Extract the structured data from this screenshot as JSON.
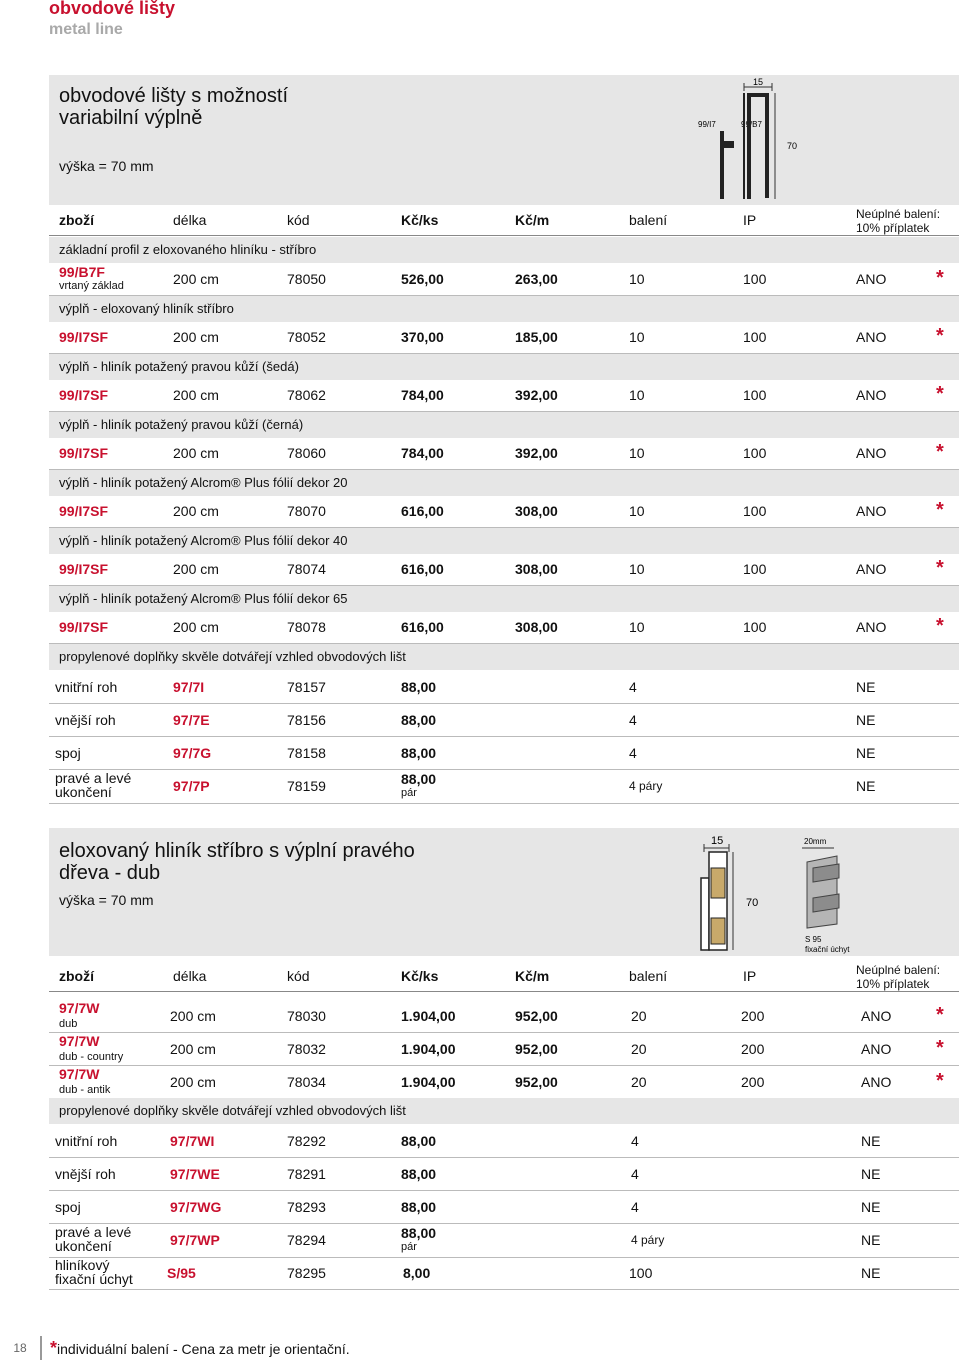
{
  "header": {
    "title": "obvodové lišty",
    "subtitle": "metal line"
  },
  "section1": {
    "title_line1": "obvodové lišty s možností",
    "title_line2": "variabilní výplně",
    "height": "výška = 70 mm",
    "diagram": {
      "dim_top": "15",
      "label_a": "99/I7",
      "label_b": "99/B7",
      "dim_side": "70"
    },
    "columns": {
      "goods": "zboží",
      "length": "délka",
      "code": "kód",
      "price_pc": "Kč/ks",
      "price_m": "Kč/m",
      "pack": "balení",
      "ip": "IP",
      "partial_1": "Neúplné balení:",
      "partial_2": "10% příplatek"
    },
    "bands": [
      "základní profil z eloxovaného hliníku - stříbro",
      "výplň - eloxovaný hliník stříbro",
      "výplň - hliník potažený pravou kůží (šedá)",
      "výplň - hliník potažený pravou kůží (černá)",
      "výplň - hliník potažený Alcrom® Plus fólií dekor 20",
      "výplň - hliník potažený Alcrom® Plus fólií dekor 40",
      "výplň - hliník potažený Alcrom® Plus fólií dekor 65",
      "propylenové doplňky skvěle dotvářejí vzhled obvodových lišt"
    ],
    "rows": [
      {
        "goods": "99/B7F",
        "note": "vrtaný základ",
        "length": "200 cm",
        "code": "78050",
        "price_pc": "526,00",
        "price_m": "263,00",
        "pack": "10",
        "ip": "100",
        "partial": "ANO",
        "star": "*"
      },
      {
        "goods": "99/I7SF",
        "length": "200 cm",
        "code": "78052",
        "price_pc": "370,00",
        "price_m": "185,00",
        "pack": "10",
        "ip": "100",
        "partial": "ANO",
        "star": "*"
      },
      {
        "goods": "99/I7SF",
        "length": "200 cm",
        "code": "78062",
        "price_pc": "784,00",
        "price_m": "392,00",
        "pack": "10",
        "ip": "100",
        "partial": "ANO",
        "star": "*"
      },
      {
        "goods": "99/I7SF",
        "length": "200 cm",
        "code": "78060",
        "price_pc": "784,00",
        "price_m": "392,00",
        "pack": "10",
        "ip": "100",
        "partial": "ANO",
        "star": "*"
      },
      {
        "goods": "99/I7SF",
        "length": "200 cm",
        "code": "78070",
        "price_pc": "616,00",
        "price_m": "308,00",
        "pack": "10",
        "ip": "100",
        "partial": "ANO",
        "star": "*"
      },
      {
        "goods": "99/I7SF",
        "length": "200 cm",
        "code": "78074",
        "price_pc": "616,00",
        "price_m": "308,00",
        "pack": "10",
        "ip": "100",
        "partial": "ANO",
        "star": "*"
      },
      {
        "goods": "99/I7SF",
        "length": "200 cm",
        "code": "78078",
        "price_pc": "616,00",
        "price_m": "308,00",
        "pack": "10",
        "ip": "100",
        "partial": "ANO",
        "star": "*"
      }
    ],
    "accessories": [
      {
        "name": "vnitřní roh",
        "sku": "97/7I",
        "code": "78157",
        "price": "88,00",
        "pack": "4",
        "partial": "NE"
      },
      {
        "name": "vnější roh",
        "sku": "97/7E",
        "code": "78156",
        "price": "88,00",
        "pack": "4",
        "partial": "NE"
      },
      {
        "name": "spoj",
        "sku": "97/7G",
        "code": "78158",
        "price": "88,00",
        "pack": "4",
        "partial": "NE"
      },
      {
        "name_1": "pravé a levé",
        "name_2": "ukončení",
        "sku": "97/7P",
        "code": "78159",
        "price": "88,00",
        "price_unit": "pár",
        "pack": "4 páry",
        "partial": "NE"
      }
    ]
  },
  "section2": {
    "title_line1": "eloxovaný hliník stříbro s výplní pravého",
    "title_line2": "dřeva - dub",
    "height": "výška = 70 mm",
    "diagram": {
      "dim_top": "15",
      "dim_side": "70",
      "dim_clip": "20mm",
      "clip_1": "S 95",
      "clip_2": "fixační úchyt"
    },
    "rows": [
      {
        "goods": "97/7W",
        "note": "dub",
        "length": "200 cm",
        "code": "78030",
        "price_pc": "1.904,00",
        "price_m": "952,00",
        "pack": "20",
        "ip": "200",
        "partial": "ANO",
        "star": "*"
      },
      {
        "goods": "97/7W",
        "note": "dub - country",
        "length": "200 cm",
        "code": "78032",
        "price_pc": "1.904,00",
        "price_m": "952,00",
        "pack": "20",
        "ip": "200",
        "partial": "ANO",
        "star": "*"
      },
      {
        "goods": "97/7W",
        "note": "dub - antik",
        "length": "200 cm",
        "code": "78034",
        "price_pc": "1.904,00",
        "price_m": "952,00",
        "pack": "20",
        "ip": "200",
        "partial": "ANO",
        "star": "*"
      }
    ],
    "band": "propylenové doplňky skvěle dotvářejí vzhled obvodových lišt",
    "accessories": [
      {
        "name": "vnitřní roh",
        "sku": "97/7WI",
        "code": "78292",
        "price": "88,00",
        "pack": "4",
        "partial": "NE"
      },
      {
        "name": "vnější roh",
        "sku": "97/7WE",
        "code": "78291",
        "price": "88,00",
        "pack": "4",
        "partial": "NE"
      },
      {
        "name": "spoj",
        "sku": "97/7WG",
        "code": "78293",
        "price": "88,00",
        "pack": "4",
        "partial": "NE"
      },
      {
        "name_1": "pravé a levé",
        "name_2": "ukončení",
        "sku": "97/7WP",
        "code": "78294",
        "price": "88,00",
        "price_unit": "pár",
        "pack": "4 páry",
        "partial": "NE"
      },
      {
        "name_1": "hliníkový",
        "name_2": "fixační úchyt",
        "sku": "S/95",
        "code": "78295",
        "price": "8,00",
        "pack": "100",
        "partial": "NE"
      }
    ]
  },
  "footer": {
    "page": "18",
    "star": "*",
    "note": "individuální balení - Cena za metr je orientační."
  }
}
